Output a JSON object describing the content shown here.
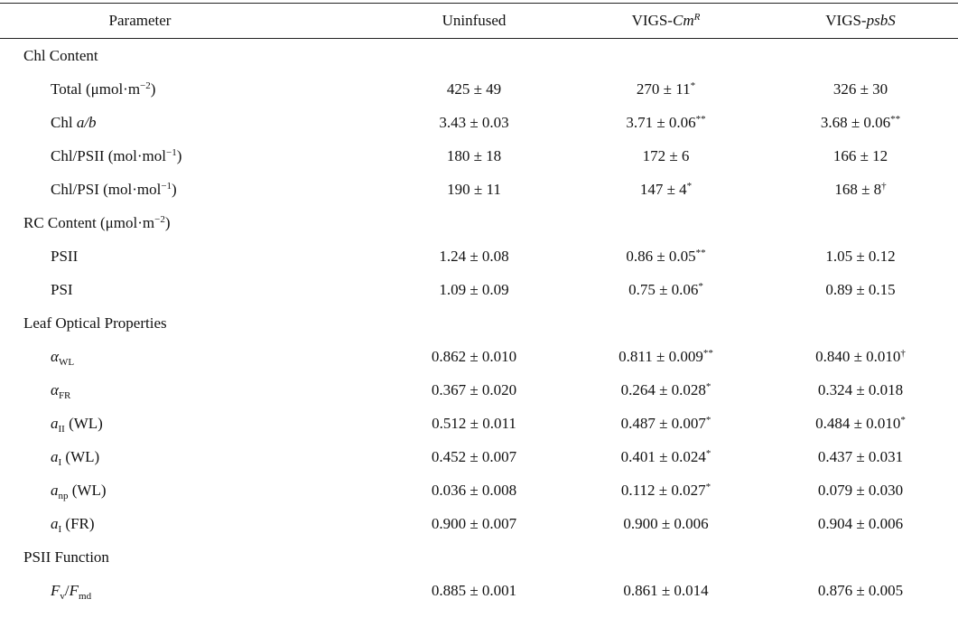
{
  "table": {
    "headers": {
      "parameter": "Parameter",
      "uninfused": "Uninfused",
      "vigs_cmr_base": "VIGS-",
      "vigs_cmr_ital": "Cm",
      "vigs_cmr_sup": "R",
      "vigs_psbs_base": "VIGS-",
      "vigs_psbs_ital": "psbS"
    },
    "sections": {
      "chl_content": "Chl Content",
      "rc_content": "RC Content (μmol·m",
      "rc_content_sup": "−2",
      "rc_content_close": ")",
      "leaf_optical": "Leaf Optical Properties",
      "psii_function": "PSII Function"
    },
    "rows": {
      "total": {
        "label": "Total (μmol·m",
        "label_sup": "−2",
        "label_close": ")",
        "uninfused": "425 ± 49",
        "cmr": "270 ± 11",
        "cmr_sig": "*",
        "psbs": "326 ± 30",
        "psbs_sig": ""
      },
      "chl_ab": {
        "label_pre": "Chl ",
        "label_ital": "a/b",
        "uninfused": "3.43 ± 0.03",
        "cmr": "3.71 ± 0.06",
        "cmr_sig": "**",
        "psbs": "3.68 ± 0.06",
        "psbs_sig": "**"
      },
      "chl_psii": {
        "label": "Chl/PSII (mol·mol",
        "label_sup": "−1",
        "label_close": ")",
        "uninfused": "180 ± 18",
        "cmr": "172 ± 6",
        "cmr_sig": "",
        "psbs": "166 ± 12",
        "psbs_sig": ""
      },
      "chl_psi": {
        "label": "Chl/PSI (mol·mol",
        "label_sup": "−1",
        "label_close": ")",
        "uninfused": "190 ± 11",
        "cmr": "147 ± 4",
        "cmr_sig": "*",
        "psbs": "168 ± 8",
        "psbs_sig": "†"
      },
      "psii": {
        "label": "PSII",
        "uninfused": "1.24 ± 0.08",
        "cmr": "0.86 ± 0.05",
        "cmr_sig": "**",
        "psbs": "1.05 ± 0.12",
        "psbs_sig": ""
      },
      "psi": {
        "label": "PSI",
        "uninfused": "1.09 ± 0.09",
        "cmr": "0.75 ± 0.06",
        "cmr_sig": "*",
        "psbs": "0.89 ± 0.15",
        "psbs_sig": ""
      },
      "alpha_wl": {
        "sym": "α",
        "sub": "WL",
        "suffix": "",
        "uninfused": "0.862 ± 0.010",
        "cmr": "0.811 ± 0.009",
        "cmr_sig": "**",
        "psbs": "0.840 ± 0.010",
        "psbs_sig": "†"
      },
      "alpha_fr": {
        "sym": "α",
        "sub": "FR",
        "suffix": "",
        "uninfused": "0.367 ± 0.020",
        "cmr": "0.264 ± 0.028",
        "cmr_sig": "*",
        "psbs": "0.324 ± 0.018",
        "psbs_sig": ""
      },
      "a_ii_wl": {
        "sym": "a",
        "sub": "II",
        "suffix": " (WL)",
        "uninfused": "0.512 ± 0.011",
        "cmr": "0.487 ± 0.007",
        "cmr_sig": "*",
        "psbs": "0.484 ± 0.010",
        "psbs_sig": "*"
      },
      "a_i_wl": {
        "sym": "a",
        "sub": "I",
        "suffix": " (WL)",
        "uninfused": "0.452 ± 0.007",
        "cmr": "0.401 ± 0.024",
        "cmr_sig": "*",
        "psbs": "0.437 ± 0.031",
        "psbs_sig": ""
      },
      "a_np_wl": {
        "sym": "a",
        "sub": "np",
        "suffix": " (WL)",
        "uninfused": "0.036 ± 0.008",
        "cmr": "0.112 ± 0.027",
        "cmr_sig": "*",
        "psbs": "0.079 ± 0.030",
        "psbs_sig": ""
      },
      "a_i_fr": {
        "sym": "a",
        "sub": "I",
        "suffix": " (FR)",
        "uninfused": "0.900 ± 0.007",
        "cmr": "0.900 ± 0.006",
        "cmr_sig": "",
        "psbs": "0.904 ± 0.006",
        "psbs_sig": ""
      },
      "fv_fmd": {
        "sym1": "F",
        "sub1": "v",
        "slash": "/",
        "sym2": "F",
        "sub2": "md",
        "uninfused": "0.885 ± 0.001",
        "cmr": "0.861 ± 0.014",
        "cmr_sig": "",
        "psbs": "0.876 ± 0.005",
        "psbs_sig": ""
      }
    }
  }
}
